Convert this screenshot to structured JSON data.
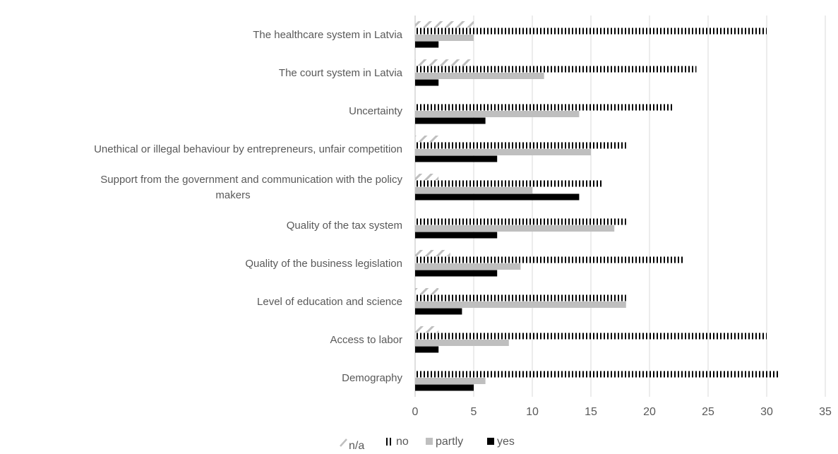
{
  "chart_data": {
    "type": "bar",
    "orientation": "horizontal",
    "categories": [
      [
        "The healthcare system in Latvia"
      ],
      [
        "The court system in Latvia"
      ],
      [
        "Uncertainty"
      ],
      [
        "Unethical or illegal behaviour by entrepreneurs, unfair competition"
      ],
      [
        "Support from the government and communication with the policy",
        "makers"
      ],
      [
        "Quality of the tax system"
      ],
      [
        "Quality of the business legislation"
      ],
      [
        "Level of education and science"
      ],
      [
        "Access to labor"
      ],
      [
        "Demography"
      ]
    ],
    "series": [
      {
        "name": "n/a",
        "pattern": "diagonal-hatch",
        "color": "#bfbfbf",
        "values": [
          5,
          5,
          0,
          2,
          2,
          0,
          3,
          2,
          2,
          0
        ]
      },
      {
        "name": "no",
        "pattern": "vertical-stripes",
        "color": "#000000",
        "values": [
          30,
          24,
          22,
          18,
          16,
          18,
          23,
          18,
          30,
          31
        ]
      },
      {
        "name": "partly",
        "pattern": "solid",
        "color": "#bfbfbf",
        "values": [
          5,
          11,
          14,
          15,
          10,
          17,
          9,
          18,
          8,
          6
        ]
      },
      {
        "name": "yes",
        "pattern": "solid",
        "color": "#000000",
        "values": [
          2,
          2,
          6,
          7,
          14,
          7,
          7,
          4,
          2,
          5
        ]
      }
    ],
    "xlim": [
      0,
      35
    ],
    "xticks": [
      0,
      5,
      10,
      15,
      20,
      25,
      30,
      35
    ],
    "grid": "vertical",
    "legend_position": "bottom"
  }
}
